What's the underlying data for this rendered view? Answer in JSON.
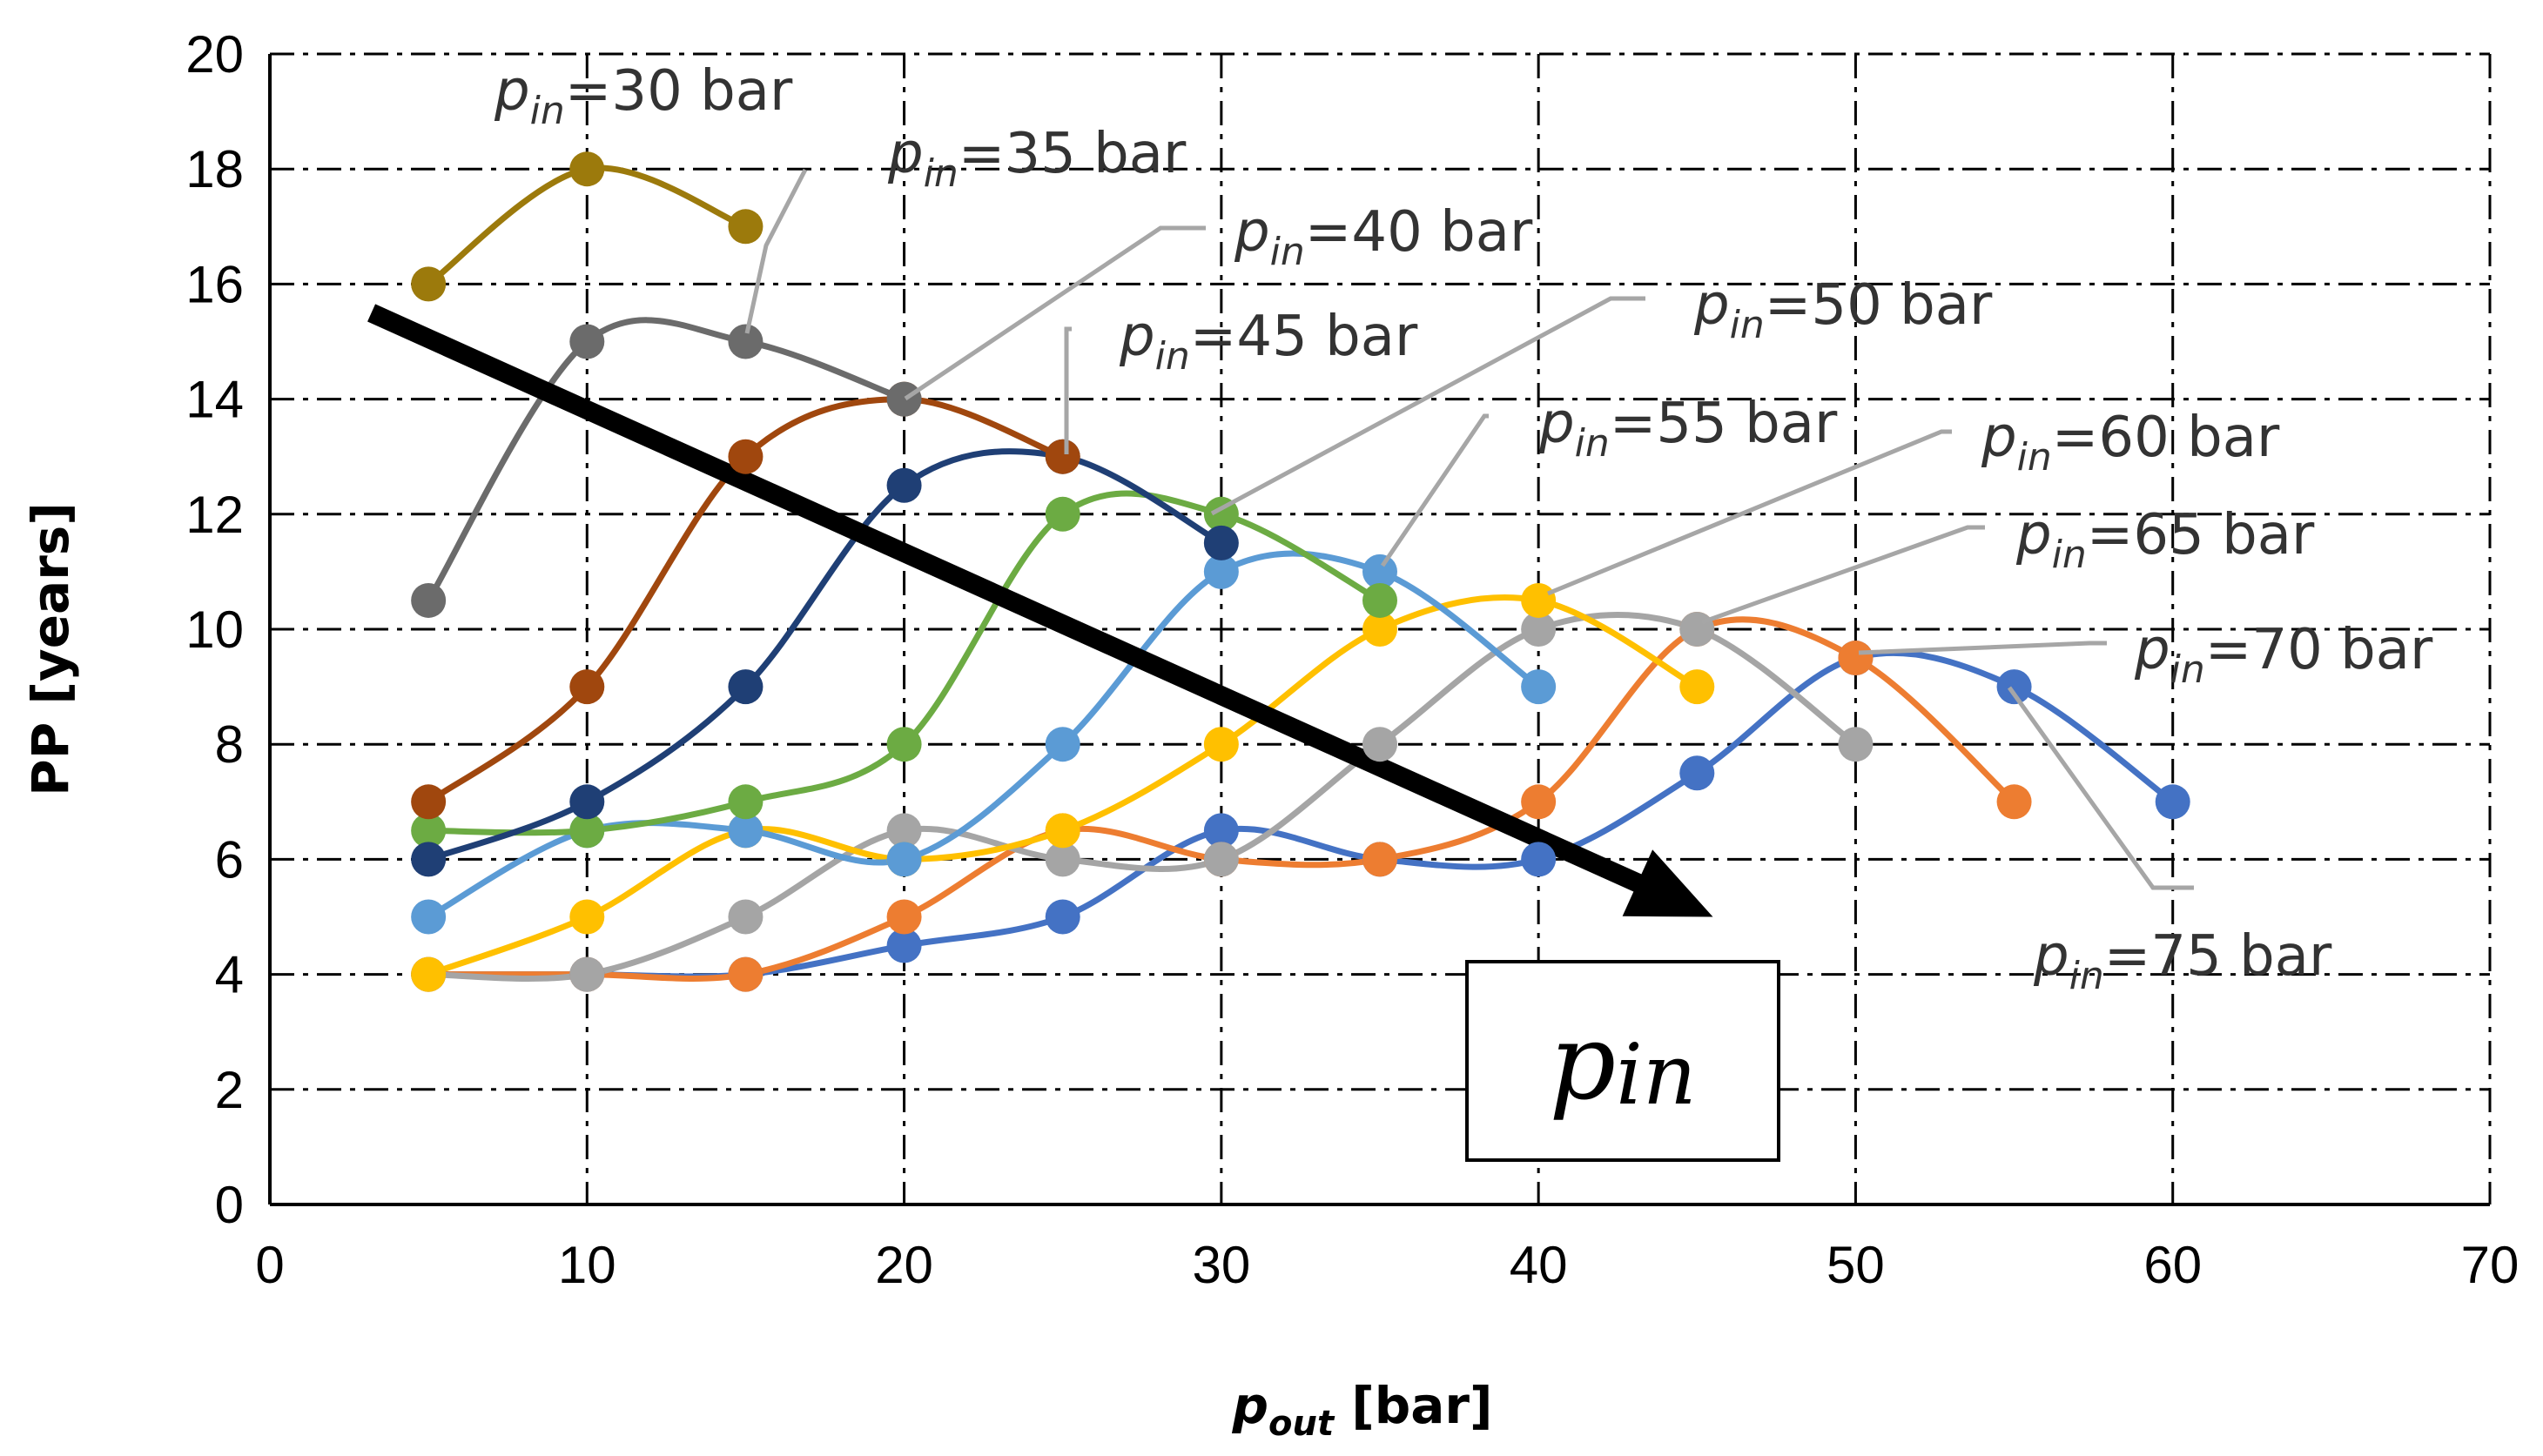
{
  "chart_data": {
    "type": "line",
    "xlabel_main": "p",
    "xlabel_sub": "out",
    "xlabel_unit": " [bar]",
    "ylabel": "PP [years]",
    "xlim": [
      0,
      70
    ],
    "ylim": [
      0,
      20
    ],
    "xticks": [
      0,
      10,
      20,
      30,
      40,
      50,
      60,
      70
    ],
    "yticks": [
      0,
      2,
      4,
      6,
      8,
      10,
      12,
      14,
      16,
      18,
      20
    ],
    "grid": true,
    "arrow_label": "pin",
    "arrow_label_main": "p",
    "arrow_label_sub": "in",
    "arrow": {
      "from": [
        3.2,
        15.5
      ],
      "to": [
        45.5,
        5.0
      ]
    },
    "series": [
      {
        "name": "30 bar",
        "label_prefix": "p",
        "label_sub": "in",
        "label_rest": "=30 bar",
        "color": "#9C7A0C",
        "x": [
          5,
          10,
          15
        ],
        "y": [
          16,
          18,
          17
        ]
      },
      {
        "name": "35 bar",
        "label_prefix": "p",
        "label_sub": "in",
        "label_rest": "=35 bar",
        "color": "#6B6B6B",
        "x": [
          5,
          10,
          15,
          20
        ],
        "y": [
          10.5,
          15,
          15,
          14
        ]
      },
      {
        "name": "40 bar",
        "label_prefix": "p",
        "label_sub": "in",
        "label_rest": "=40 bar",
        "color": "#A0470E",
        "x": [
          5,
          10,
          15,
          20,
          25
        ],
        "y": [
          7,
          9,
          13,
          14,
          13
        ]
      },
      {
        "name": "45 bar",
        "label_prefix": "p",
        "label_sub": "in",
        "label_rest": "=45 bar",
        "color": "#1F3F75",
        "x": [
          5,
          10,
          15,
          20,
          25,
          30
        ],
        "y": [
          6,
          7,
          9,
          12.5,
          13,
          11.5
        ]
      },
      {
        "name": "50 bar",
        "label_prefix": "p",
        "label_sub": "in",
        "label_rest": "=50 bar",
        "color": "#6CAB43",
        "x": [
          5,
          10,
          15,
          20,
          25,
          30,
          35
        ],
        "y": [
          6.5,
          6.5,
          7,
          8,
          12,
          12,
          10.5
        ]
      },
      {
        "name": "55 bar",
        "label_prefix": "p",
        "label_sub": "in",
        "label_rest": "=55 bar",
        "color": "#5B9BD5",
        "x": [
          5,
          10,
          15,
          20,
          25,
          30,
          35,
          40
        ],
        "y": [
          5,
          6.5,
          6.5,
          6,
          8,
          11,
          11,
          9
        ]
      },
      {
        "name": "60 bar",
        "label_prefix": "p",
        "label_sub": "in",
        "label_rest": "=60 bar",
        "color": "#FFC000",
        "x": [
          5,
          10,
          15,
          20,
          25,
          30,
          35,
          40,
          45
        ],
        "y": [
          4,
          5,
          6.5,
          6,
          6.5,
          8,
          10,
          10.5,
          9
        ]
      },
      {
        "name": "65 bar",
        "label_prefix": "p",
        "label_sub": "in",
        "label_rest": "=65 bar",
        "color": "#A5A5A5",
        "x": [
          5,
          10,
          15,
          20,
          25,
          30,
          35,
          40,
          45,
          50
        ],
        "y": [
          4,
          4,
          5,
          6.5,
          6,
          6,
          8,
          10,
          10,
          8
        ]
      },
      {
        "name": "70 bar",
        "label_prefix": "p",
        "label_sub": "in",
        "label_rest": "=70 bar",
        "color": "#ED7D31",
        "x": [
          5,
          10,
          15,
          20,
          25,
          30,
          35,
          40,
          45,
          50,
          55
        ],
        "y": [
          4,
          4,
          4,
          5,
          6.5,
          6,
          6,
          7,
          10,
          9.5,
          7
        ]
      },
      {
        "name": "75 bar",
        "label_prefix": "p",
        "label_sub": "in",
        "label_rest": "=75 bar",
        "color": "#4472C4",
        "x": [
          5,
          10,
          15,
          20,
          25,
          30,
          35,
          40,
          45,
          50,
          55,
          60
        ],
        "y": [
          4,
          4,
          4,
          4.5,
          5,
          6.5,
          6,
          6,
          7.5,
          9.5,
          9,
          7
        ]
      }
    ]
  }
}
